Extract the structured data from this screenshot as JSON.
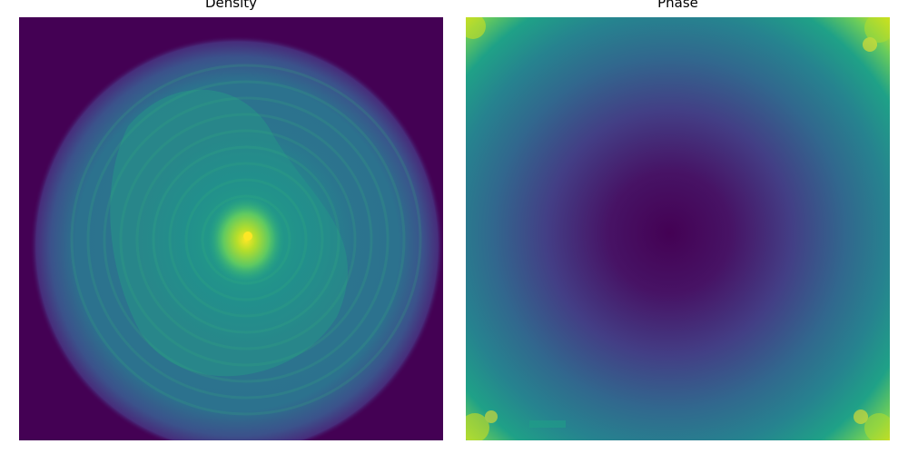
{
  "chart_data": [
    {
      "type": "heatmap",
      "title": "Density",
      "colormap": "viridis",
      "axes_visible": false,
      "description_values": {
        "background_level": 0.0,
        "disk_level": 0.38,
        "brighter_inner_region_level": 0.48,
        "central_peak_level": 0.95
      }
    },
    {
      "type": "heatmap",
      "title": "Phase",
      "colormap": "viridis",
      "axes_visible": false,
      "description_values": {
        "center_level": 0.0,
        "edge_level": 0.6,
        "corner_level": 0.95
      }
    }
  ],
  "colors": {
    "viridis_0": "#440154",
    "viridis_25": "#3b528b",
    "viridis_50": "#21918c",
    "viridis_75": "#5ec962",
    "viridis_100": "#fde725"
  }
}
